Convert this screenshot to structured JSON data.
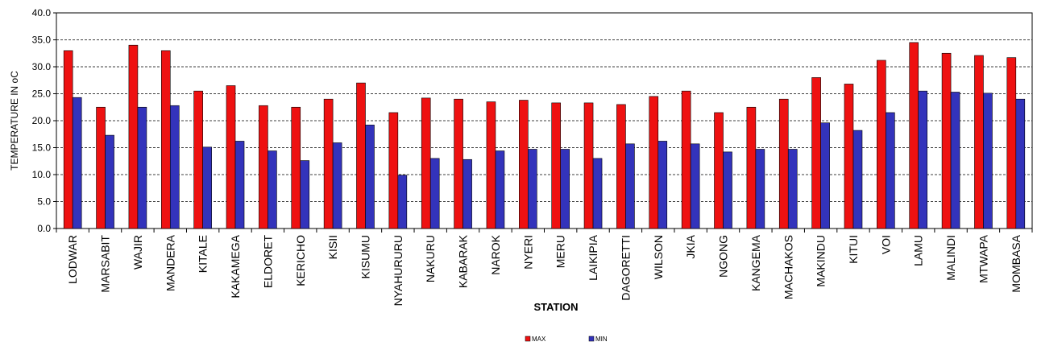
{
  "chart_data": {
    "type": "bar",
    "title": "",
    "xlabel": "STATION",
    "ylabel": "TEMPERATURE  IN oC",
    "ylim": [
      0,
      40
    ],
    "ytick_step": 5,
    "ytick_labels": [
      "0.0",
      "5.0",
      "10.0",
      "15.0",
      "20.0",
      "25.0",
      "30.0",
      "35.0",
      "40.0"
    ],
    "grid": "horizontal dashed",
    "legend_position": "bottom-center",
    "categories": [
      "LODWAR",
      "MARSABIT",
      "WAJIR",
      "MANDERA",
      "KITALE",
      "KAKAMEGA",
      "ELDORET",
      "KERICHO",
      "KISII",
      "KISUMU",
      "NYAHURURU",
      "NAKURU",
      "KABARAK",
      "NAROK",
      "NYERI",
      "MERU",
      "LAIKIPIA",
      "DAGORETTI",
      "WILSON",
      "JKIA",
      "NGONG",
      "KANGEMA",
      "MACHAKOS",
      "MAKINDU",
      "KITUI",
      "VOI",
      "LAMU",
      "MALINDI",
      "MTWAPA",
      "MOMBASA"
    ],
    "series": [
      {
        "name": "MAX",
        "color": "#ee1111",
        "values": [
          33.0,
          22.5,
          34.0,
          33.0,
          25.5,
          26.5,
          22.8,
          22.5,
          24.0,
          27.0,
          21.5,
          24.2,
          24.0,
          23.5,
          23.8,
          23.3,
          23.3,
          23.0,
          24.5,
          25.5,
          21.5,
          22.5,
          24.0,
          28.0,
          26.8,
          31.2,
          34.5,
          32.5,
          32.1,
          31.7
        ]
      },
      {
        "name": "MIN",
        "color": "#3333bb",
        "values": [
          24.3,
          17.3,
          22.5,
          22.8,
          15.1,
          16.2,
          14.4,
          12.6,
          15.9,
          19.2,
          9.9,
          13.0,
          12.8,
          14.4,
          14.7,
          14.7,
          13.0,
          15.7,
          16.2,
          15.7,
          14.2,
          14.7,
          14.7,
          19.6,
          18.2,
          21.5,
          25.5,
          25.3,
          25.1,
          24.0
        ]
      }
    ]
  }
}
